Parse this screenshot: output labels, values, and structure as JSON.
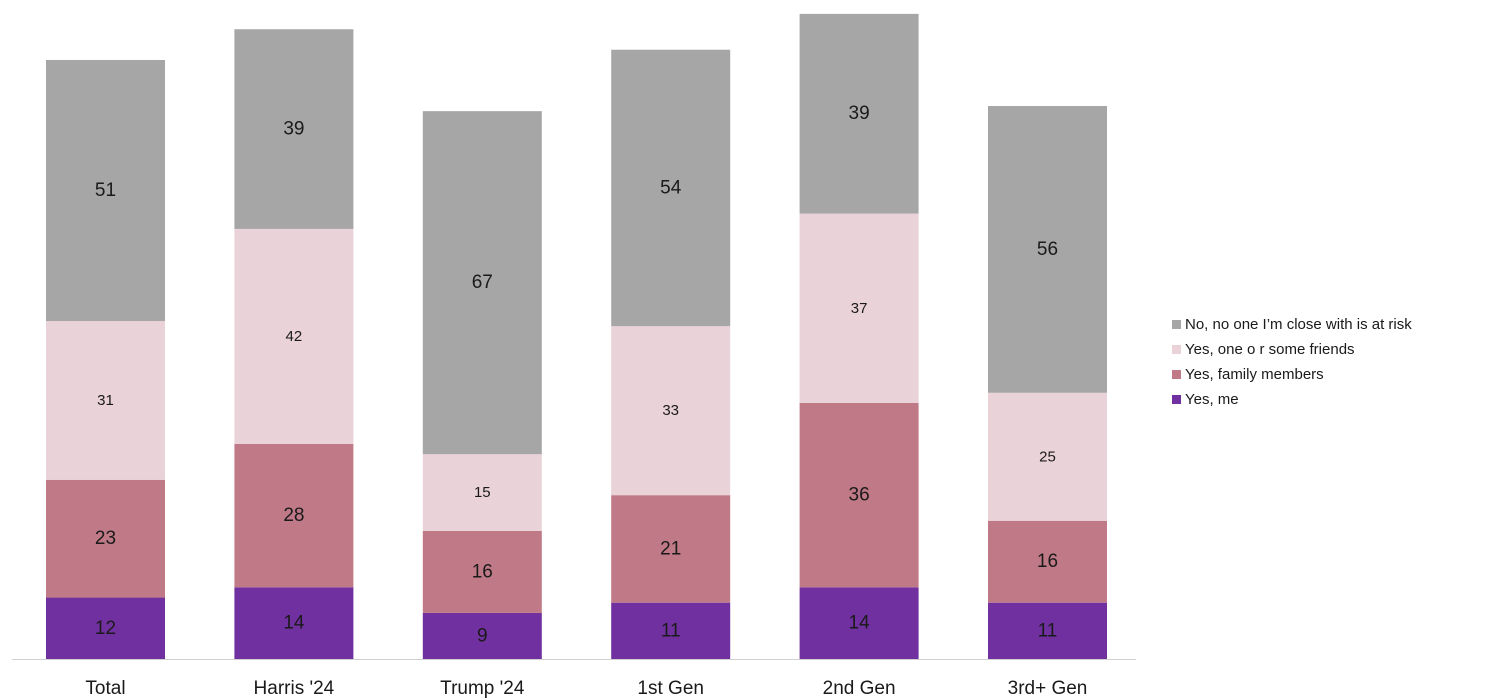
{
  "colors": {
    "Yes, me": "#7030a0",
    "Yes, family members": "#c07a87",
    "Yes, one o r some friends": "#ead2d9",
    "No, no one I’m close with is at risk": "#a6a6a6"
  },
  "chart_data": {
    "type": "bar",
    "stacked": true,
    "categories": [
      "Total",
      "Harris '24",
      "Trump '24",
      "1st Gen",
      "2nd Gen",
      "3rd+ Gen"
    ],
    "series": [
      {
        "name": "Yes, me",
        "values": [
          12,
          14,
          9,
          11,
          14,
          11
        ]
      },
      {
        "name": "Yes, family members",
        "values": [
          23,
          28,
          16,
          21,
          36,
          16
        ]
      },
      {
        "name": "Yes, one o r some friends",
        "values": [
          31,
          42,
          15,
          33,
          37,
          25
        ]
      },
      {
        "name": "No, no one I’m close with is at risk",
        "values": [
          51,
          39,
          67,
          54,
          39,
          56
        ]
      }
    ],
    "title": "",
    "xlabel": "",
    "ylabel": "",
    "ylim": [
      0,
      126
    ],
    "grid": false,
    "legend_position": "right",
    "legend": [
      "No, no one I’m close with is at risk",
      "Yes, one o r some friends",
      "Yes, family members",
      "Yes, me"
    ]
  }
}
